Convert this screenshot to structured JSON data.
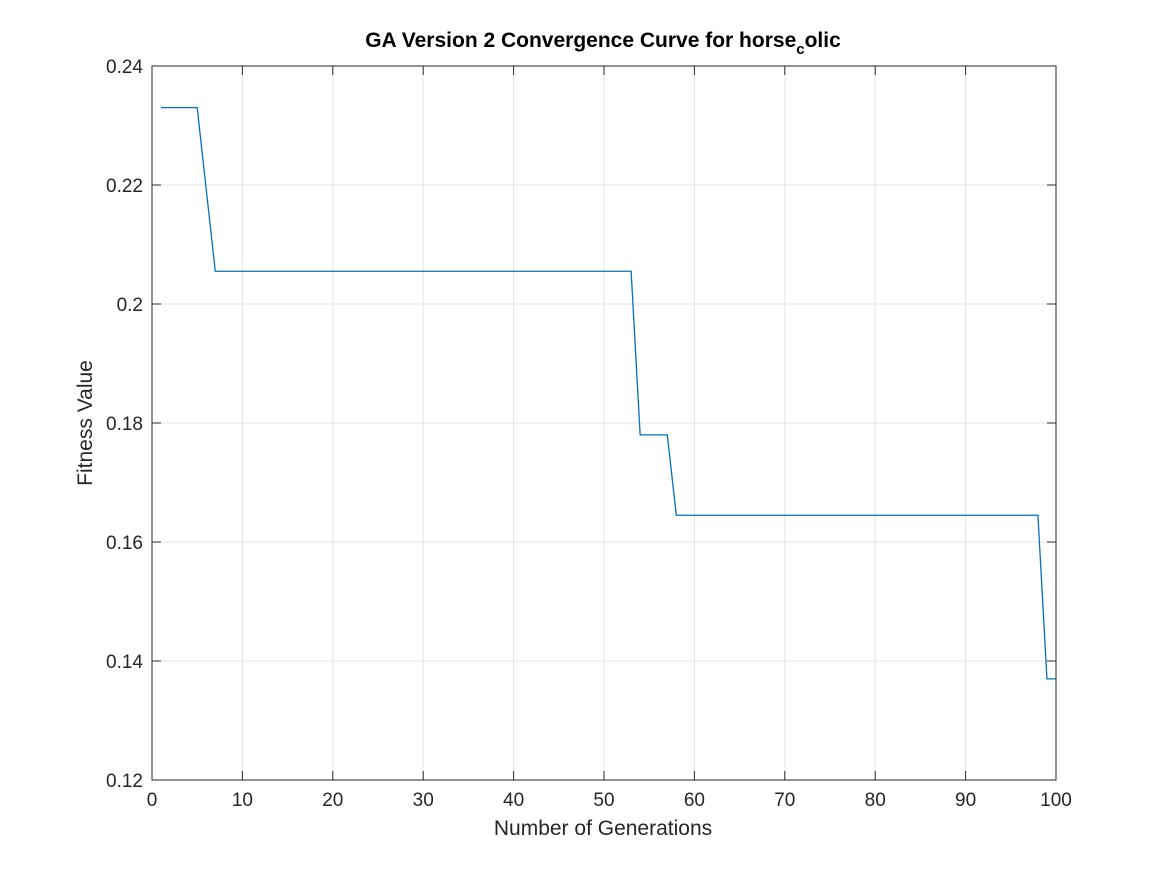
{
  "chart_data": {
    "type": "line",
    "title": "GA Version 2 Convergence Curve for horse",
    "title_subscript": "c",
    "title_suffix": "olic",
    "xlabel": "Number of Generations",
    "ylabel": "Fitness Value",
    "xlim": [
      0,
      100
    ],
    "ylim": [
      0.12,
      0.24
    ],
    "xticks": [
      0,
      10,
      20,
      30,
      40,
      50,
      60,
      70,
      80,
      90,
      100
    ],
    "yticks": [
      0.12,
      0.14,
      0.16,
      0.18,
      0.2,
      0.22,
      0.24
    ],
    "xtick_labels": [
      "0",
      "10",
      "20",
      "30",
      "40",
      "50",
      "60",
      "70",
      "80",
      "90",
      "100"
    ],
    "ytick_labels": [
      "0.12",
      "0.14",
      "0.16",
      "0.18",
      "0.2",
      "0.22",
      "0.24"
    ],
    "grid": true,
    "line_color": "#0072BD",
    "series": [
      {
        "x": [
          1,
          5,
          7,
          53,
          54,
          57,
          58,
          98,
          99,
          100
        ],
        "y": [
          0.233,
          0.233,
          0.2055,
          0.2055,
          0.178,
          0.178,
          0.1645,
          0.1645,
          0.137,
          0.137
        ]
      }
    ]
  }
}
